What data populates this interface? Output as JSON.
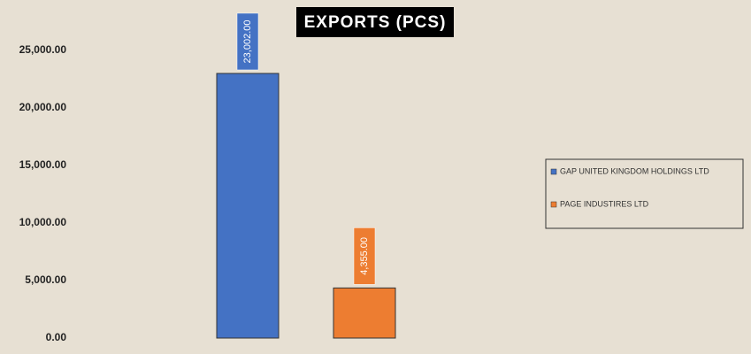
{
  "chart_data": {
    "type": "bar",
    "title": "EXPORTS (PCS)",
    "categories": [
      null
    ],
    "series": [
      {
        "name": "GAP UNITED KINGDOM HOLDINGS LTD",
        "color": "#4472c4",
        "values": [
          23002
        ],
        "value_labels": [
          "23,002.00"
        ]
      },
      {
        "name": "PAGE INDUSTIRES LTD",
        "color": "#ed7d31",
        "values": [
          4355
        ],
        "value_labels": [
          "4,355.00"
        ]
      }
    ],
    "ylim": [
      0,
      25000
    ],
    "yticks": [
      {
        "value": 0,
        "label": "0.00"
      },
      {
        "value": 5000,
        "label": "5,000.00"
      },
      {
        "value": 10000,
        "label": "10,000.00"
      },
      {
        "value": 15000,
        "label": "15,000.00"
      },
      {
        "value": 20000,
        "label": "20,000.00"
      },
      {
        "value": 25000,
        "label": "25,000.00"
      }
    ],
    "grid": false,
    "legend": "right"
  }
}
